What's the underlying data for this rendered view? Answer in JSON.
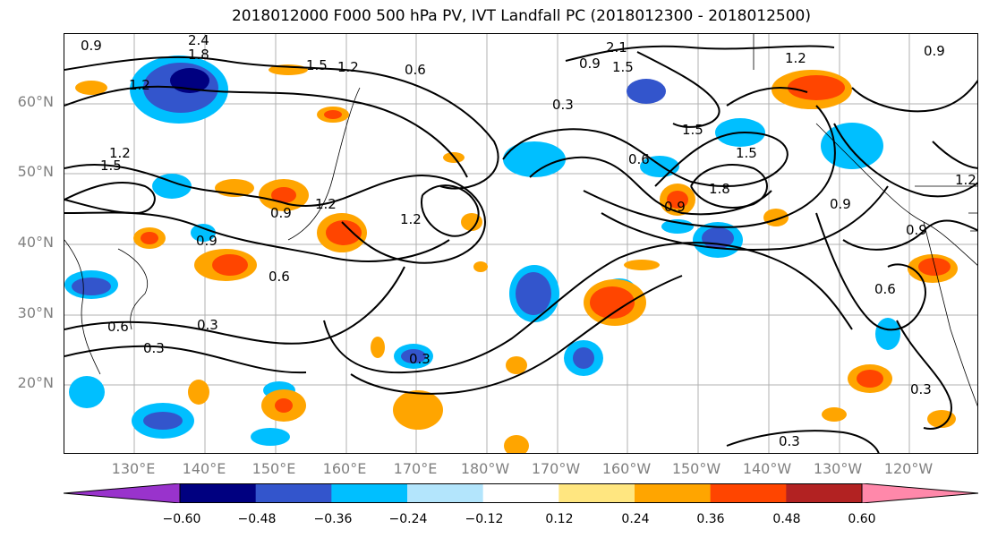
{
  "title": "2018012000 F000 500 hPa PV, IVT Landfall PC (2018012300 - 2018012500)",
  "lat_labels": [
    "60°N",
    "50°N",
    "40°N",
    "30°N",
    "20°N"
  ],
  "lon_labels": [
    "130°E",
    "140°E",
    "150°E",
    "160°E",
    "170°E",
    "180°W",
    "170°W",
    "160°W",
    "150°W",
    "140°W",
    "130°W",
    "120°W"
  ],
  "contour_labels": [
    "0.9",
    "2.4",
    "1.8",
    "1.2",
    "1.5",
    "1.2",
    "0.6",
    "2.1",
    "0.9",
    "1.5",
    "1.2",
    "0.9",
    "0.3",
    "1.5",
    "1.2",
    "0.6",
    "1.5",
    "1.8",
    "0.9",
    "1.5",
    "0.9",
    "1.2",
    "0.9",
    "1.2",
    "0.9",
    "0.9",
    "0.6",
    "0.6",
    "0.3",
    "0.6",
    "0.3",
    "0.3",
    "0.3",
    "0.3",
    "1.2"
  ],
  "colorbar": {
    "colors": [
      "#9933cc",
      "#000080",
      "#3355cc",
      "#00bfff",
      "#b3e5fc",
      "#ffffff",
      "#ffe680",
      "#ffa500",
      "#ff4500",
      "#b22222",
      "#ff88aa"
    ],
    "ticks": [
      "−0.60",
      "−0.48",
      "−0.36",
      "−0.24",
      "−0.12",
      "0.12",
      "0.24",
      "0.36",
      "0.48",
      "0.60"
    ]
  }
}
